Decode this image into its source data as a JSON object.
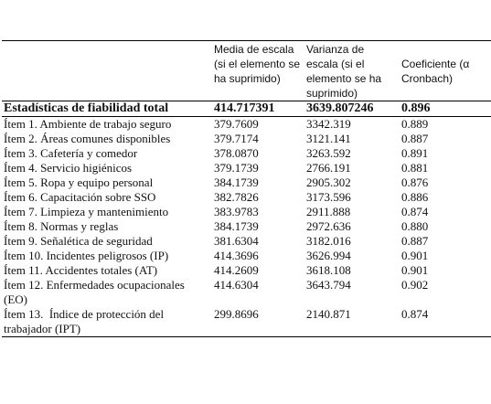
{
  "table": {
    "header": [
      "",
      "Media de escala (si el elemento se ha suprimido)",
      "Varianza de escala (si el elemento se ha suprimido)",
      "Coeficiente (α Cronbach)"
    ],
    "total": [
      "Estadísticas de fiabilidad total",
      "414.717391",
      "3639.807246",
      "0.896"
    ],
    "rows": [
      [
        "Ítem 1. Ambiente de trabajo seguro",
        "379.7609",
        "3342.319",
        "0.889"
      ],
      [
        "Ítem 2. Áreas comunes disponibles",
        "379.7174",
        "3121.141",
        "0.887"
      ],
      [
        "Ítem 3. Cafetería y comedor",
        "378.0870",
        "3263.592",
        "0.891"
      ],
      [
        "Ítem 4. Servicio higiénicos",
        "379.1739",
        "2766.191",
        "0.881"
      ],
      [
        "Ítem 5. Ropa y equipo personal",
        "384.1739",
        "2905.302",
        "0.876"
      ],
      [
        "Ítem 6. Capacitación sobre SSO",
        "382.7826",
        "3173.596",
        "0.886"
      ],
      [
        "Ítem 7. Limpieza y mantenimiento",
        "383.9783",
        "2911.888",
        "0.874"
      ],
      [
        "Ítem 8. Normas y reglas",
        "384.1739",
        "2972.636",
        "0.880"
      ],
      [
        "Ítem 9. Señalética de seguridad",
        "381.6304",
        "3182.016",
        "0.887"
      ],
      [
        "Ítem 10. Incidentes peligrosos (IP)",
        "414.3696",
        "3626.994",
        "0.901"
      ],
      [
        "Ítem 11. Accidentes totales (AT)",
        "414.2609",
        "3618.108",
        "0.901"
      ],
      [
        "Ítem 12. Enfermedades ocupacionales (EO)",
        "414.6304",
        "3643.794",
        "0.902"
      ],
      [
        "Ítem 13.  Índice de protección del trabajador (IPT)",
        "299.8696",
        "2140.871",
        "0.874"
      ]
    ]
  }
}
